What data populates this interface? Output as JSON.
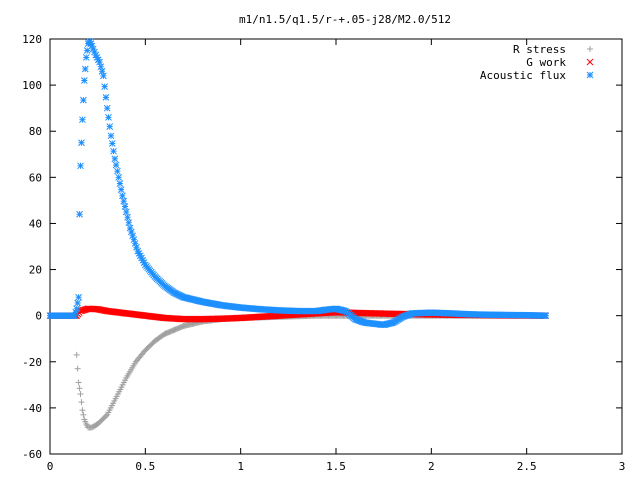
{
  "chart_data": {
    "type": "scatter",
    "title": "m1/n1.5/q1.5/r-+.05-j28/M2.0/512",
    "xlabel": "",
    "ylabel": "",
    "xlim": [
      0,
      3
    ],
    "ylim": [
      -60,
      120
    ],
    "x_ticks": [
      "0",
      "0.5",
      "1",
      "1.5",
      "2",
      "2.5",
      "3"
    ],
    "y_ticks": [
      "-60",
      "-40",
      "-20",
      "0",
      "20",
      "40",
      "60",
      "80",
      "100",
      "120"
    ],
    "grid": false,
    "legend_position": "top-right",
    "series": [
      {
        "name": "R stress",
        "marker": "plus",
        "color": "#a0a0a0",
        "points": [
          [
            0,
            0
          ],
          [
            0.14,
            0
          ],
          [
            0.14,
            -17
          ],
          [
            0.15,
            -29
          ],
          [
            0.16,
            -34
          ],
          [
            0.17,
            -41
          ],
          [
            0.18,
            -45
          ],
          [
            0.19,
            -47
          ],
          [
            0.2,
            -48.5
          ],
          [
            0.22,
            -48.5
          ],
          [
            0.25,
            -47
          ],
          [
            0.3,
            -43
          ],
          [
            0.35,
            -35
          ],
          [
            0.4,
            -27
          ],
          [
            0.45,
            -20
          ],
          [
            0.5,
            -15
          ],
          [
            0.55,
            -11
          ],
          [
            0.6,
            -8
          ],
          [
            0.7,
            -4.5
          ],
          [
            0.8,
            -2.5
          ],
          [
            0.9,
            -1.5
          ],
          [
            1.0,
            -1
          ],
          [
            1.2,
            -0.5
          ],
          [
            1.4,
            0
          ],
          [
            1.6,
            0
          ],
          [
            1.8,
            0
          ],
          [
            2.0,
            0
          ],
          [
            2.2,
            0
          ],
          [
            2.4,
            0
          ],
          [
            2.6,
            0
          ]
        ]
      },
      {
        "name": "G work",
        "marker": "cross",
        "color": "#ff0000",
        "points": [
          [
            0,
            0
          ],
          [
            0.14,
            0
          ],
          [
            0.16,
            2
          ],
          [
            0.2,
            3
          ],
          [
            0.25,
            2.8
          ],
          [
            0.3,
            2
          ],
          [
            0.4,
            1
          ],
          [
            0.5,
            0
          ],
          [
            0.6,
            -1
          ],
          [
            0.7,
            -1.5
          ],
          [
            0.8,
            -1.5
          ],
          [
            0.9,
            -1.3
          ],
          [
            1.0,
            -1
          ],
          [
            1.2,
            0
          ],
          [
            1.4,
            1
          ],
          [
            1.5,
            1.5
          ],
          [
            1.6,
            1.2
          ],
          [
            1.7,
            1
          ],
          [
            1.8,
            0.8
          ],
          [
            2.0,
            0.5
          ],
          [
            2.2,
            0.3
          ],
          [
            2.4,
            0.1
          ],
          [
            2.6,
            0
          ]
        ]
      },
      {
        "name": "Acoustic flux",
        "marker": "star",
        "color": "#1e90ff",
        "points": [
          [
            0,
            0
          ],
          [
            0.13,
            0
          ],
          [
            0.14,
            3
          ],
          [
            0.15,
            8
          ],
          [
            0.155,
            44
          ],
          [
            0.16,
            65
          ],
          [
            0.17,
            85
          ],
          [
            0.18,
            102
          ],
          [
            0.19,
            112
          ],
          [
            0.2,
            118
          ],
          [
            0.21,
            119
          ],
          [
            0.22,
            117
          ],
          [
            0.24,
            113
          ],
          [
            0.26,
            110
          ],
          [
            0.28,
            104
          ],
          [
            0.3,
            90
          ],
          [
            0.32,
            78
          ],
          [
            0.34,
            68
          ],
          [
            0.36,
            60
          ],
          [
            0.38,
            52
          ],
          [
            0.4,
            45
          ],
          [
            0.42,
            38
          ],
          [
            0.44,
            33
          ],
          [
            0.46,
            28
          ],
          [
            0.48,
            25
          ],
          [
            0.5,
            22
          ],
          [
            0.55,
            17
          ],
          [
            0.6,
            13
          ],
          [
            0.65,
            10
          ],
          [
            0.7,
            8
          ],
          [
            0.8,
            6
          ],
          [
            0.9,
            4.5
          ],
          [
            1.0,
            3.5
          ],
          [
            1.1,
            2.8
          ],
          [
            1.2,
            2.3
          ],
          [
            1.3,
            2
          ],
          [
            1.4,
            2
          ],
          [
            1.45,
            2.6
          ],
          [
            1.5,
            3
          ],
          [
            1.55,
            2
          ],
          [
            1.6,
            -1.5
          ],
          [
            1.65,
            -3
          ],
          [
            1.7,
            -3.5
          ],
          [
            1.75,
            -4
          ],
          [
            1.8,
            -3
          ],
          [
            1.85,
            -0.5
          ],
          [
            1.9,
            1
          ],
          [
            2.0,
            1.3
          ],
          [
            2.1,
            1
          ],
          [
            2.2,
            0.6
          ],
          [
            2.3,
            0.4
          ],
          [
            2.4,
            0.3
          ],
          [
            2.5,
            0.2
          ],
          [
            2.6,
            0
          ]
        ]
      }
    ]
  }
}
